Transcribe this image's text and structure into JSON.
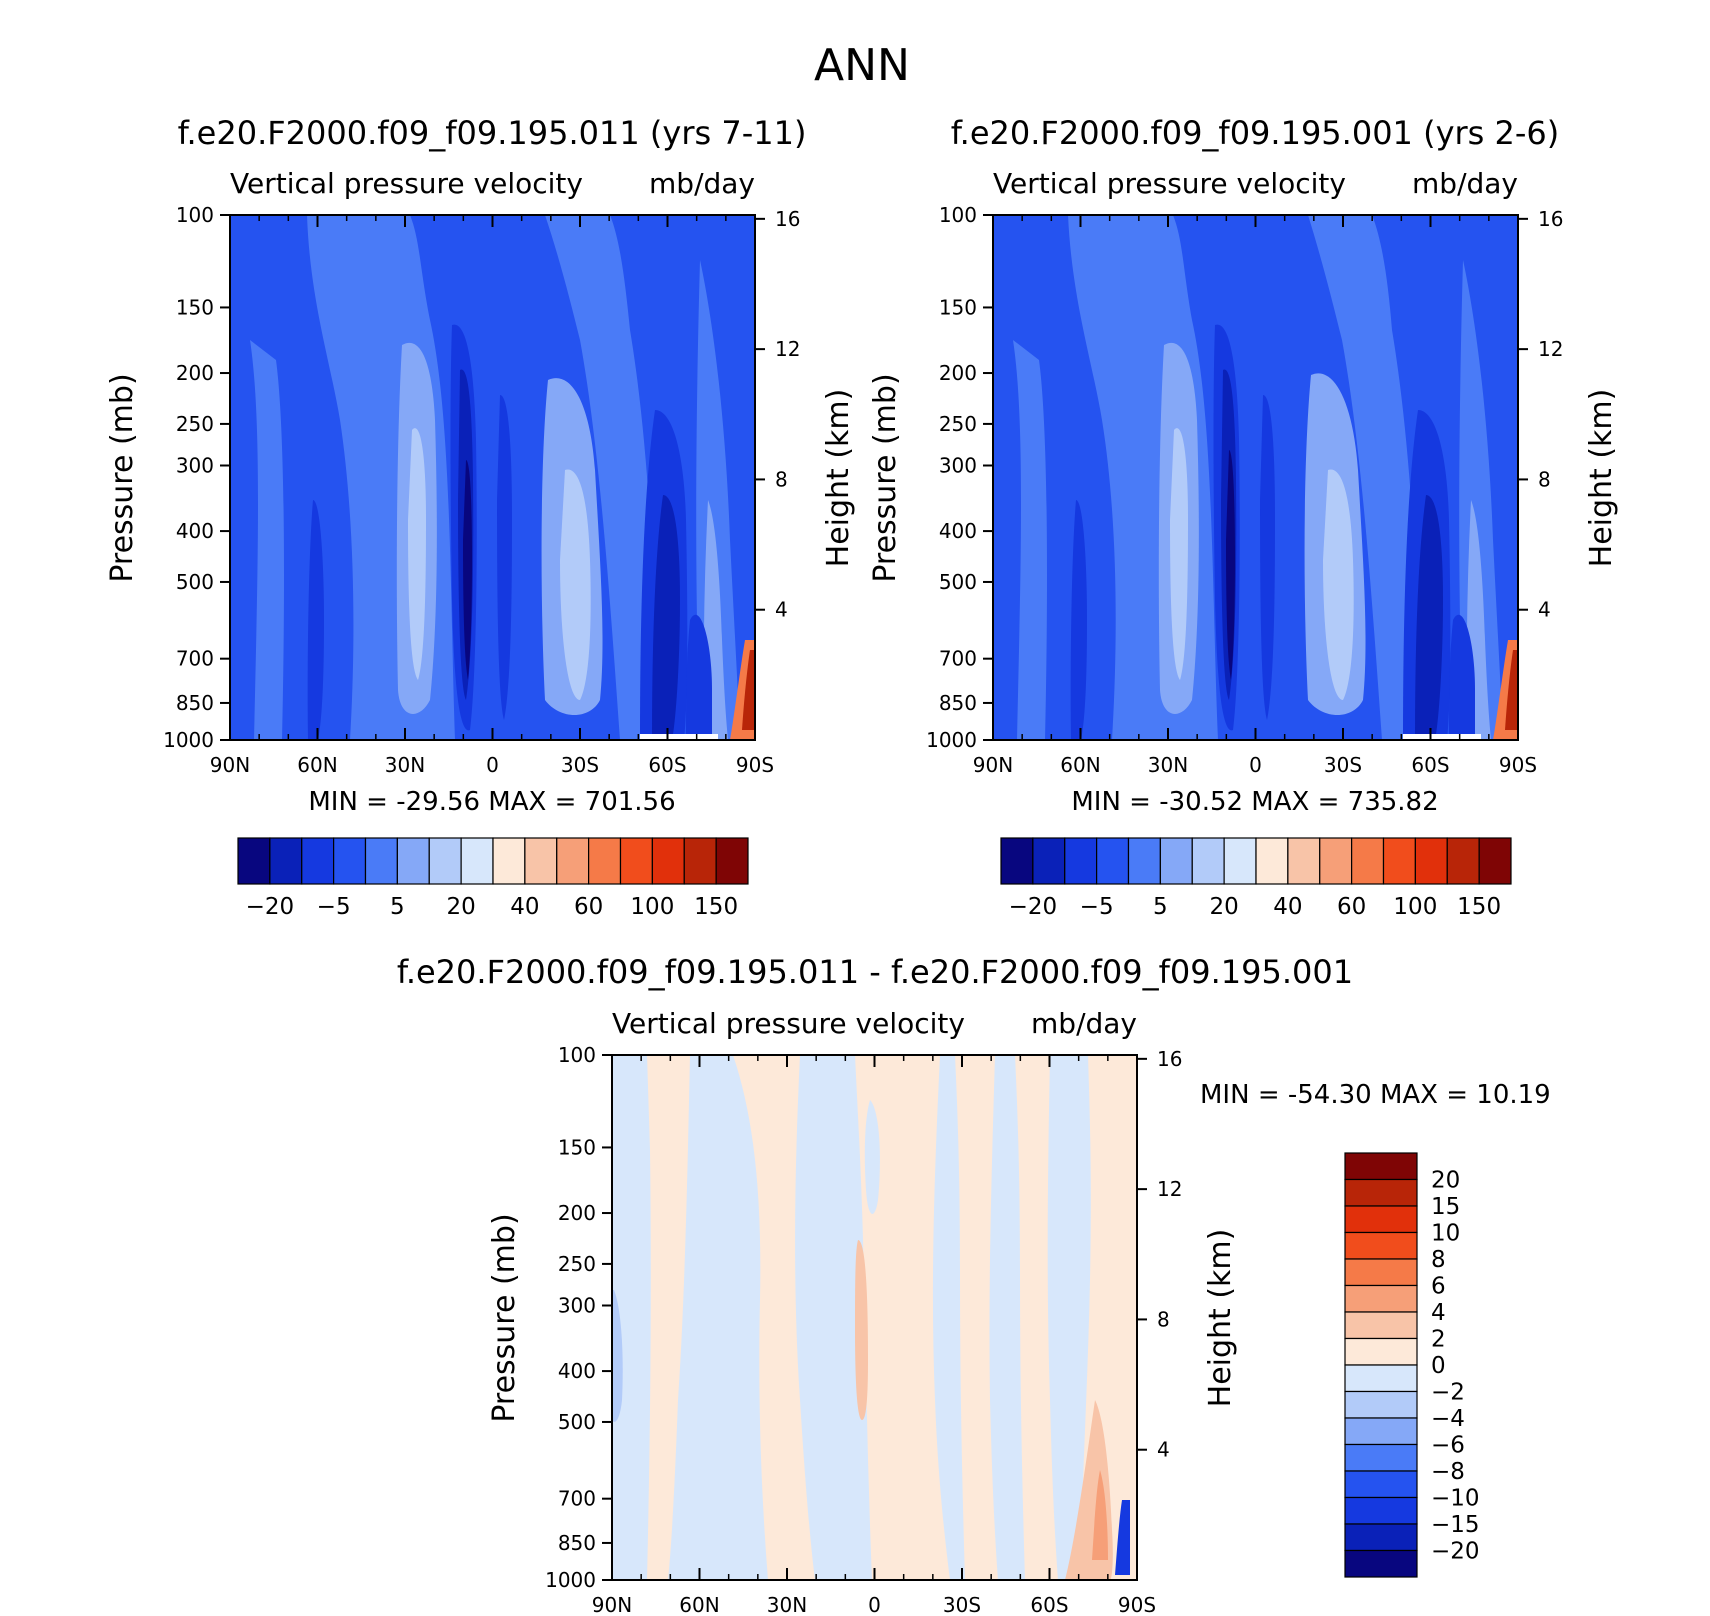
{
  "figure_title": "ANN",
  "colorbar_labels_abs": [
    "-20",
    "-5",
    "5",
    "20",
    "40",
    "60",
    "100",
    "150"
  ],
  "colorbar_colors_abs": [
    "#08067f",
    "#0a21b8",
    "#1539e0",
    "#2553f0",
    "#4a7bf7",
    "#85a8f7",
    "#b2cbf9",
    "#d7e7fb",
    "#fde9d9",
    "#f8c4a8",
    "#f69f78",
    "#f57a48",
    "#f14d1c",
    "#e1300b",
    "#b82508",
    "#7f0505"
  ],
  "colorbar_labels_diff": [
    "20",
    "15",
    "10",
    "8",
    "6",
    "4",
    "2",
    "0",
    "-2",
    "-4",
    "-6",
    "-8",
    "-10",
    "-15",
    "-20"
  ],
  "colorbar_colors_diff": [
    "#7f0505",
    "#b82508",
    "#e1300b",
    "#f14d1c",
    "#f57a48",
    "#f69f78",
    "#f8c4a8",
    "#fde9d9",
    "#d7e7fb",
    "#b2cbf9",
    "#85a8f7",
    "#4a7bf7",
    "#2553f0",
    "#1539e0",
    "#0a21b8",
    "#08067f"
  ],
  "chart_data": [
    {
      "type": "heatmap",
      "title": "f.e20.F2000.f09_f09.195.011 (yrs 7-11)",
      "subtitle_left": "Vertical pressure velocity",
      "subtitle_right": "mb/day",
      "ylabel": "Pressure (mb)",
      "ylabel_right": "Height (km)",
      "x_ticks": [
        "90N",
        "60N",
        "30N",
        "0",
        "30S",
        "60S",
        "90S"
      ],
      "y_ticks": [
        "100",
        "150",
        "200",
        "250",
        "300",
        "400",
        "500",
        "700",
        "850",
        "1000"
      ],
      "y_ticks_right": [
        "16",
        "12",
        "8",
        "4"
      ],
      "y_scale": "log",
      "stats_text": "MIN = -29.56   MAX = 701.56",
      "min": -29.56,
      "max": 701.56,
      "latitude_bands": [
        {
          "from": "90N",
          "to": "60N",
          "level": -8
        },
        {
          "from": "60N",
          "to": "30N",
          "level": -6
        },
        {
          "from": "30N",
          "to": "20N",
          "level": -2
        },
        {
          "from": "15N",
          "to": "0",
          "level": -20
        },
        {
          "from": "0",
          "to": "15S",
          "level": -10
        },
        {
          "from": "15S",
          "to": "40S",
          "level": -2
        },
        {
          "from": "40S",
          "to": "60S",
          "level": -6
        },
        {
          "from": "60S",
          "to": "70S",
          "level": -15
        },
        {
          "from": "70S",
          "to": "90S",
          "level": -6
        }
      ]
    },
    {
      "type": "heatmap",
      "title": "f.e20.F2000.f09_f09.195.001 (yrs 2-6)",
      "subtitle_left": "Vertical pressure velocity",
      "subtitle_right": "mb/day",
      "ylabel": "Pressure (mb)",
      "ylabel_right": "Height (km)",
      "x_ticks": [
        "90N",
        "60N",
        "30N",
        "0",
        "30S",
        "60S",
        "90S"
      ],
      "y_ticks": [
        "100",
        "150",
        "200",
        "250",
        "300",
        "400",
        "500",
        "700",
        "850",
        "1000"
      ],
      "y_ticks_right": [
        "16",
        "12",
        "8",
        "4"
      ],
      "y_scale": "log",
      "stats_text": "MIN = -30.52   MAX = 735.82",
      "min": -30.52,
      "max": 735.82,
      "latitude_bands": [
        {
          "from": "90N",
          "to": "60N",
          "level": -8
        },
        {
          "from": "60N",
          "to": "30N",
          "level": -6
        },
        {
          "from": "30N",
          "to": "20N",
          "level": -2
        },
        {
          "from": "15N",
          "to": "0",
          "level": -20
        },
        {
          "from": "0",
          "to": "15S",
          "level": -10
        },
        {
          "from": "15S",
          "to": "40S",
          "level": -2
        },
        {
          "from": "40S",
          "to": "60S",
          "level": -6
        },
        {
          "from": "60S",
          "to": "70S",
          "level": -15
        },
        {
          "from": "70S",
          "to": "90S",
          "level": -6
        }
      ]
    },
    {
      "type": "heatmap",
      "title": "f.e20.F2000.f09_f09.195.011 - f.e20.F2000.f09_f09.195.001",
      "subtitle_left": "Vertical pressure velocity",
      "subtitle_right": "mb/day",
      "ylabel": "Pressure (mb)",
      "ylabel_right": "Height (km)",
      "x_ticks": [
        "90N",
        "60N",
        "30N",
        "0",
        "30S",
        "60S",
        "90S"
      ],
      "y_ticks": [
        "100",
        "150",
        "200",
        "250",
        "300",
        "400",
        "500",
        "700",
        "850",
        "1000"
      ],
      "y_ticks_right": [
        "16",
        "12",
        "8",
        "4"
      ],
      "y_scale": "log",
      "stats_text": "MIN = -54.30   MAX =  10.19",
      "min": -54.3,
      "max": 10.19,
      "latitude_bands": [
        {
          "from": "90N",
          "to": "80N",
          "level": -2
        },
        {
          "from": "80N",
          "to": "70N",
          "level": 2
        },
        {
          "from": "70N",
          "to": "54N",
          "level": -2
        },
        {
          "from": "54N",
          "to": "40N",
          "level": 2
        },
        {
          "from": "40N",
          "to": "20N",
          "level": -2
        },
        {
          "from": "20N",
          "to": "10S",
          "level": 2
        },
        {
          "from": "10S",
          "to": "20S",
          "level": -2
        },
        {
          "from": "20S",
          "to": "35S",
          "level": 2
        },
        {
          "from": "35S",
          "to": "55S",
          "level": -2
        },
        {
          "from": "55S",
          "to": "65S",
          "level": 2
        },
        {
          "from": "65S",
          "to": "75S",
          "level": -2
        },
        {
          "from": "75S",
          "to": "90S",
          "level": 2
        }
      ]
    }
  ]
}
